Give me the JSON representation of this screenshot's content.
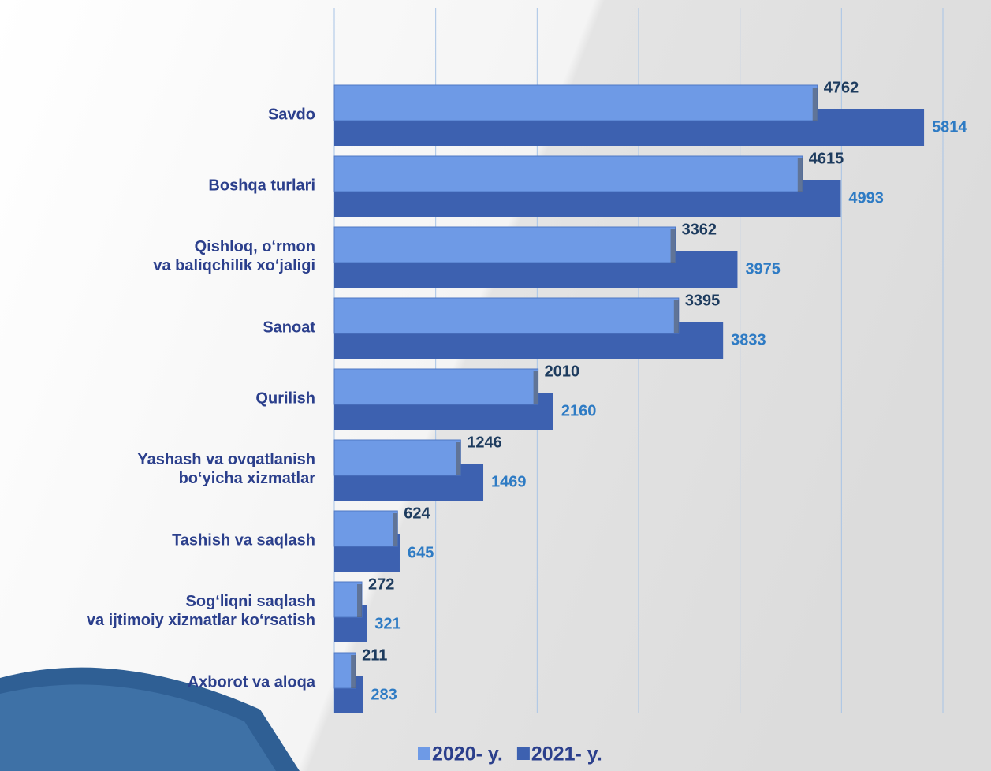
{
  "chart_data": {
    "type": "bar",
    "orientation": "horizontal",
    "categories": [
      "Savdo",
      "Boshqa turlari",
      "Qishloq, o‘rmon\nva baliqchilik xo‘jaligi",
      "Sanoat",
      "Qurilish",
      "Yashash va ovqatlanish\nbo‘yicha xizmatlar",
      "Tashish va saqlash",
      "Sog‘liqni saqlash\nva ijtimoiy xizmatlar ko‘rsatish",
      "Axborot va aloqa"
    ],
    "series": [
      {
        "name": "2020- y.",
        "color": "#6e9ae6",
        "values": [
          4762,
          4615,
          3362,
          3395,
          2010,
          1246,
          624,
          272,
          211
        ]
      },
      {
        "name": "2021- y.",
        "color": "#3d61b0",
        "values": [
          5814,
          4993,
          3975,
          3833,
          2160,
          1469,
          645,
          321,
          283
        ]
      }
    ],
    "xlim": [
      0,
      6000
    ],
    "xticks": [
      0,
      1000,
      2000,
      3000,
      4000,
      5000,
      6000
    ],
    "grid": true,
    "legend": "bottom"
  }
}
